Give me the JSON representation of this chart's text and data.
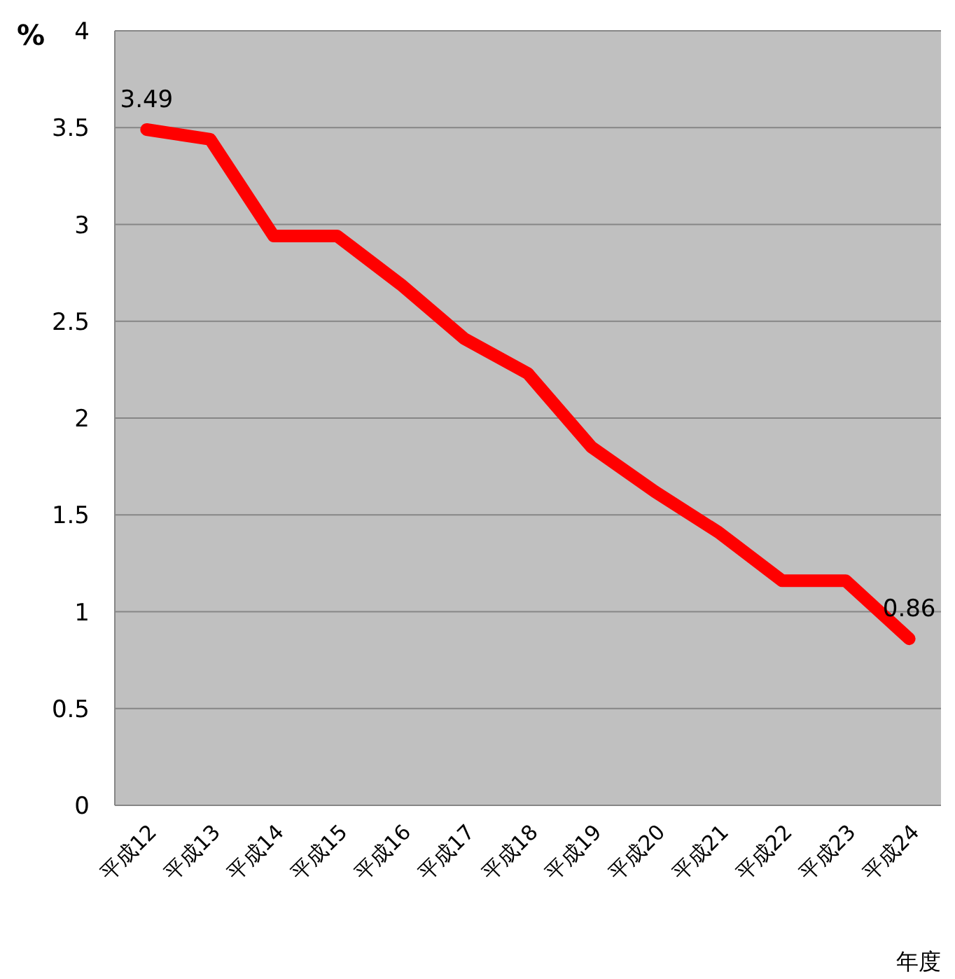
{
  "chart_data": {
    "type": "line",
    "ylabel": "%",
    "xlabel": "年度",
    "categories": [
      "平成12",
      "平成13",
      "平成14",
      "平成15",
      "平成16",
      "平成17",
      "平成18",
      "平成19",
      "平成20",
      "平成21",
      "平成22",
      "平成23",
      "平成24"
    ],
    "series": [
      {
        "color": "#ff0000",
        "values": [
          3.49,
          3.44,
          2.94,
          2.94,
          2.69,
          2.41,
          2.23,
          1.85,
          1.62,
          1.41,
          1.16,
          1.16,
          0.86
        ],
        "value_labels": [
          "3.49",
          null,
          null,
          null,
          null,
          null,
          null,
          null,
          null,
          null,
          null,
          null,
          "0.86"
        ]
      }
    ],
    "ylim": [
      0,
      4
    ],
    "yticks": [
      0,
      0.5,
      1,
      1.5,
      2,
      2.5,
      3,
      3.5,
      4
    ],
    "grid": "y",
    "marker": "none",
    "line_style": "solid"
  }
}
